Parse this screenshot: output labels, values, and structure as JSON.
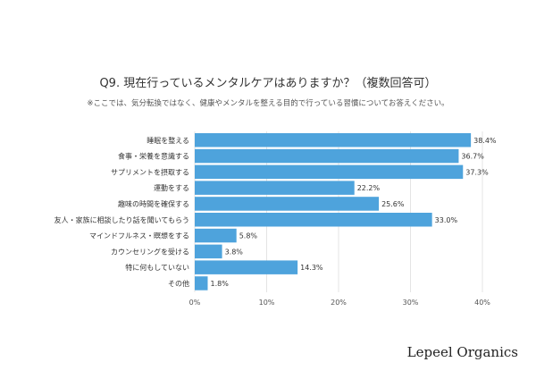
{
  "chart_data": {
    "type": "bar",
    "orientation": "horizontal",
    "title": "Q9. 現在行っているメンタルケアはありますか？（複数回答可）",
    "subtitle": "※ここでは、気分転換ではなく、健康やメンタルを整える目的で行っている習慣についてお答えください。",
    "categories": [
      "睡眠を整える",
      "食事・栄養を意識する",
      "サプリメントを摂取する",
      "運動をする",
      "趣味の時間を確保する",
      "友人・家族に相談したり話を聞いてもらう",
      "マインドフルネス・瞑想をする",
      "カウンセリングを受ける",
      "特に何もしていない",
      "その他"
    ],
    "values": [
      38.4,
      36.7,
      37.3,
      22.2,
      25.6,
      33.0,
      5.8,
      3.8,
      14.3,
      1.8
    ],
    "data_labels": [
      "38.4%",
      "36.7%",
      "37.3%",
      "22.2%",
      "25.6%",
      "33.0%",
      "5.8%",
      "3.8%",
      "14.3%",
      "1.8%"
    ],
    "xlim": [
      0,
      40
    ],
    "xticks": [
      "0%",
      "10%",
      "20%",
      "30%",
      "40%"
    ],
    "grid": true,
    "bar_color": "#4ea3dc"
  },
  "brand": "Lepeel Organics"
}
